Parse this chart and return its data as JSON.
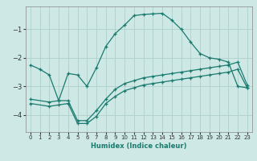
{
  "xlabel": "Humidex (Indice chaleur)",
  "ylabel": "",
  "bg_color": "#cde8e5",
  "grid_color": "#afd0cc",
  "line_color": "#1a7a6e",
  "xlim": [
    -0.5,
    23.5
  ],
  "ylim": [
    -4.6,
    -0.2
  ],
  "yticks": [
    -4,
    -3,
    -2,
    -1
  ],
  "xticks": [
    0,
    1,
    2,
    3,
    4,
    5,
    6,
    7,
    8,
    9,
    10,
    11,
    12,
    13,
    14,
    15,
    16,
    17,
    18,
    19,
    20,
    21,
    22,
    23
  ],
  "curve1_x": [
    0,
    1,
    2,
    3,
    4,
    5,
    6,
    7,
    8,
    9,
    10,
    11,
    12,
    13,
    14,
    15,
    16,
    17,
    18,
    19,
    20,
    21,
    22,
    23
  ],
  "curve1_y": [
    -2.25,
    -2.4,
    -2.6,
    -3.5,
    -2.55,
    -2.6,
    -3.0,
    -2.35,
    -1.6,
    -1.15,
    -0.85,
    -0.52,
    -0.48,
    -0.46,
    -0.44,
    -0.68,
    -1.0,
    -1.45,
    -1.85,
    -2.0,
    -2.05,
    -2.15,
    -3.0,
    -3.05
  ],
  "curve2_x": [
    0,
    2,
    3,
    4,
    5,
    6,
    7,
    8,
    9,
    10,
    11,
    12,
    13,
    14,
    15,
    16,
    17,
    18,
    19,
    20,
    21,
    22,
    23
  ],
  "curve2_y": [
    -3.45,
    -3.55,
    -3.5,
    -3.5,
    -4.2,
    -4.2,
    -3.85,
    -3.45,
    -3.1,
    -2.9,
    -2.8,
    -2.7,
    -2.65,
    -2.6,
    -2.55,
    -2.5,
    -2.45,
    -2.4,
    -2.35,
    -2.3,
    -2.25,
    -2.15,
    -2.95
  ],
  "curve3_x": [
    0,
    2,
    3,
    4,
    5,
    6,
    7,
    8,
    9,
    10,
    11,
    12,
    13,
    14,
    15,
    16,
    17,
    18,
    19,
    20,
    21,
    22,
    23
  ],
  "curve3_y": [
    -3.6,
    -3.7,
    -3.65,
    -3.6,
    -4.3,
    -4.3,
    -4.05,
    -3.6,
    -3.35,
    -3.15,
    -3.05,
    -2.95,
    -2.9,
    -2.85,
    -2.8,
    -2.75,
    -2.7,
    -2.65,
    -2.6,
    -2.55,
    -2.5,
    -2.4,
    -3.05
  ]
}
